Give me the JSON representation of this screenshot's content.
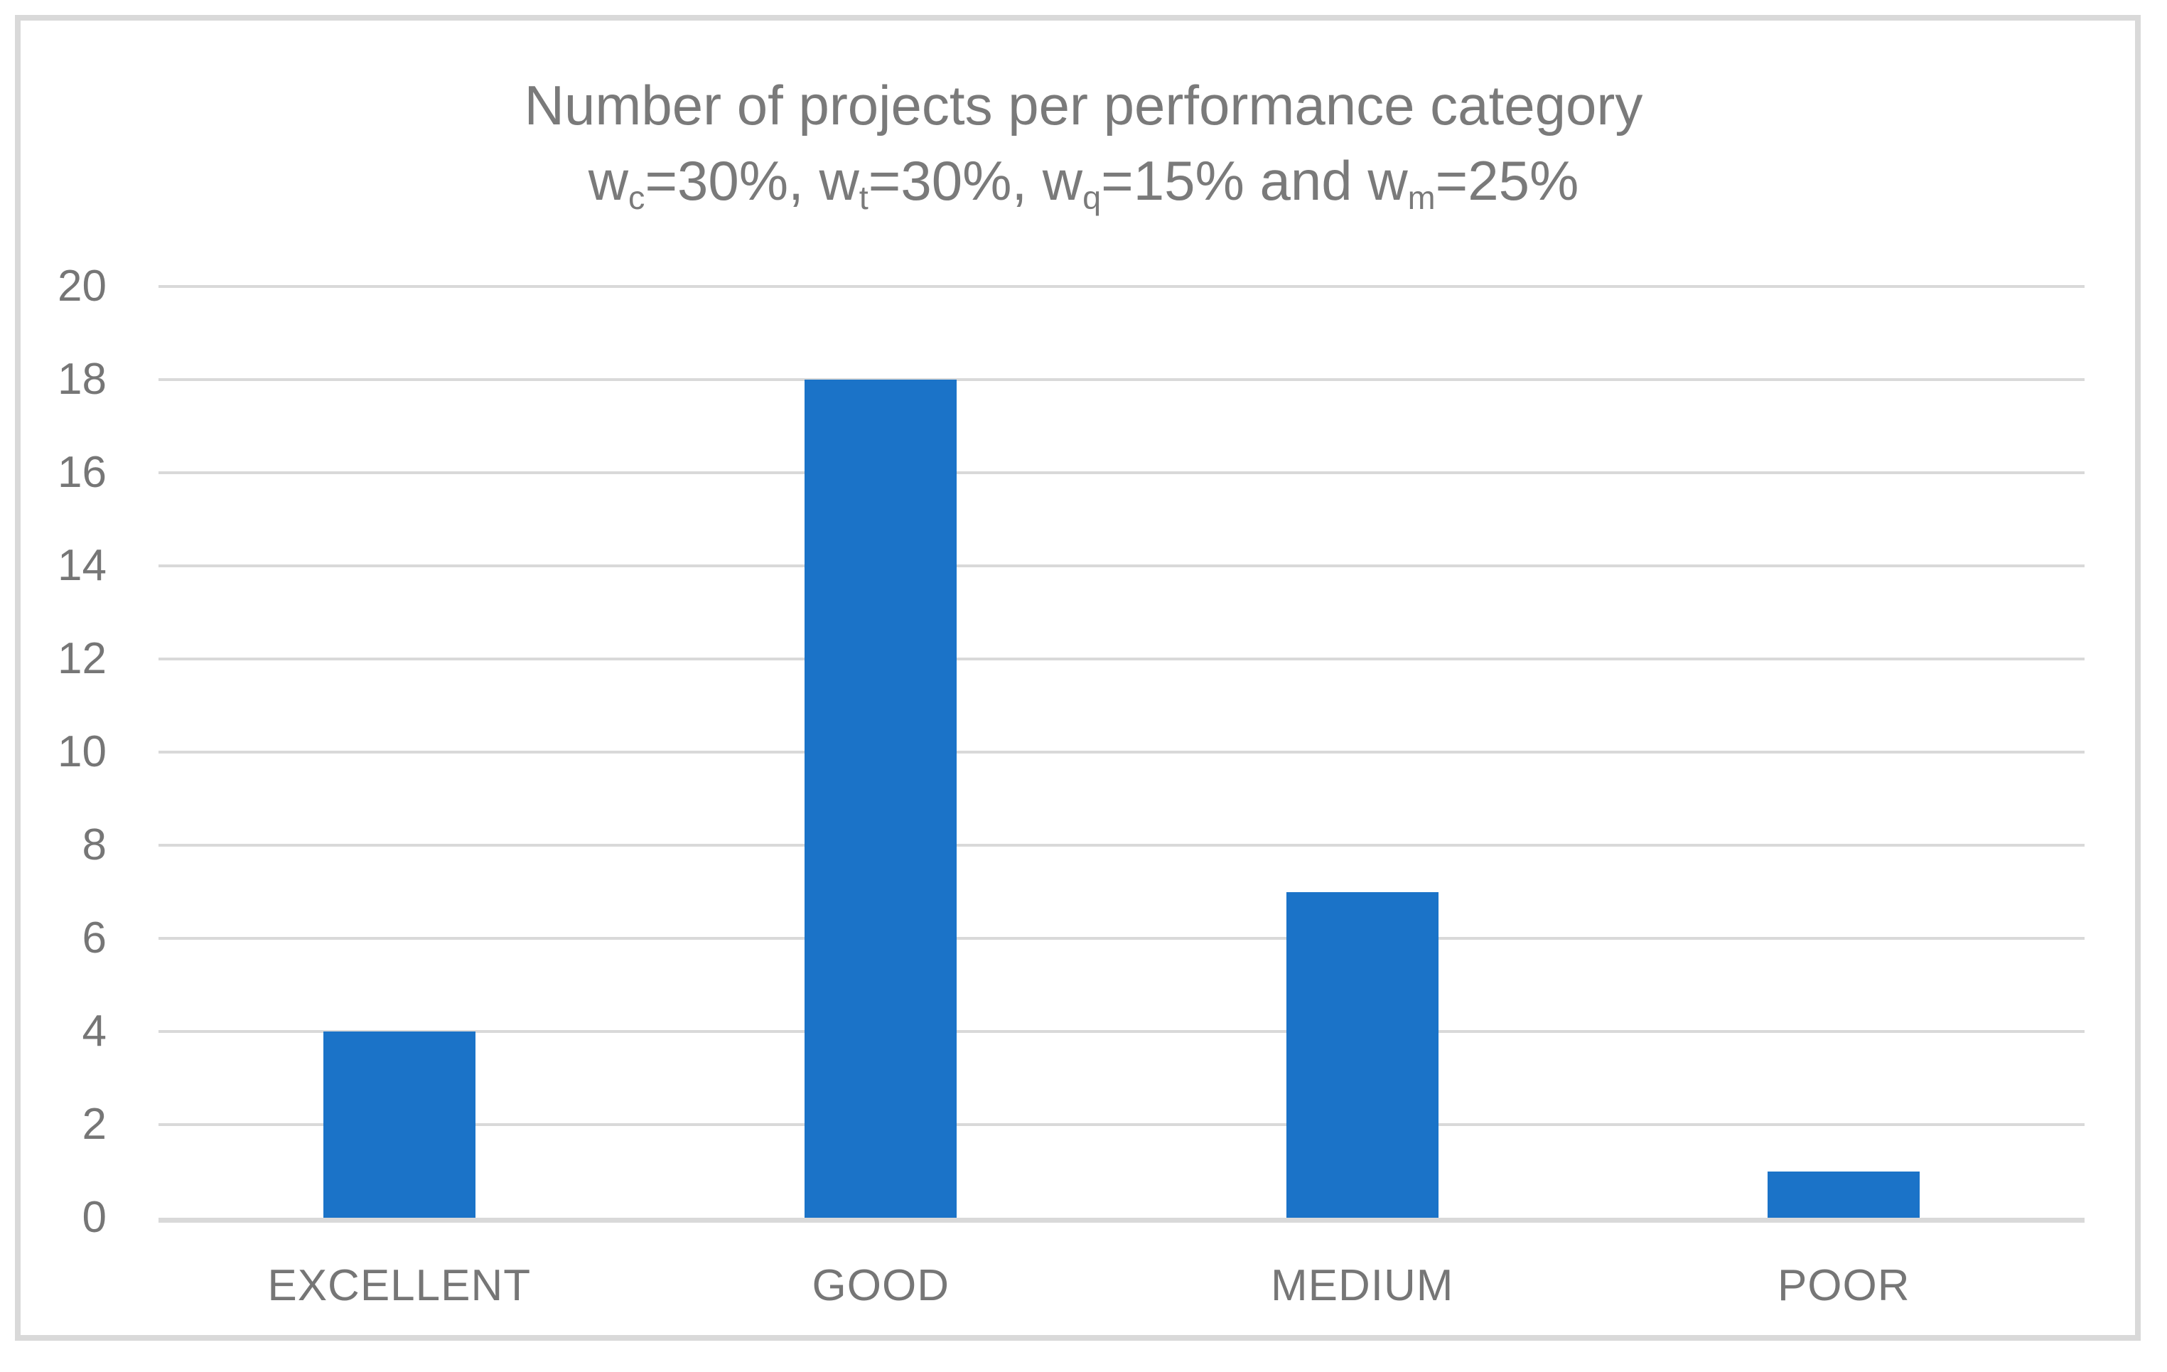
{
  "figure": {
    "frame_border_color": "#d9d9d9",
    "background_color": "#ffffff"
  },
  "chart_data": {
    "type": "bar",
    "title": "Number of projects per performance category",
    "subtitle_plain": "wc=30%, wt=30%, wq=15% and wm=25%",
    "subtitle_segments": [
      {
        "t": "w"
      },
      {
        "sub": "c"
      },
      {
        "t": "=30%, w"
      },
      {
        "sub": "t"
      },
      {
        "t": "=30%, w"
      },
      {
        "sub": "q"
      },
      {
        "t": "=15% and w"
      },
      {
        "sub": "m"
      },
      {
        "t": "=25%"
      }
    ],
    "categories": [
      "EXCELLENT",
      "GOOD",
      "MEDIUM",
      "POOR"
    ],
    "values": [
      4,
      18,
      7,
      1
    ],
    "xlabel": "",
    "ylabel": "",
    "ylim": [
      0,
      20
    ],
    "ytick_step": 2,
    "yticks": [
      0,
      2,
      4,
      6,
      8,
      10,
      12,
      14,
      16,
      18,
      20
    ],
    "grid": true,
    "legend": false,
    "bar_color": "#1b73c8",
    "gridline_color": "#d9d9d9",
    "axis_line_color": "#d9d9d9",
    "title_color": "#7a7a7a",
    "tick_label_color": "#767676"
  }
}
